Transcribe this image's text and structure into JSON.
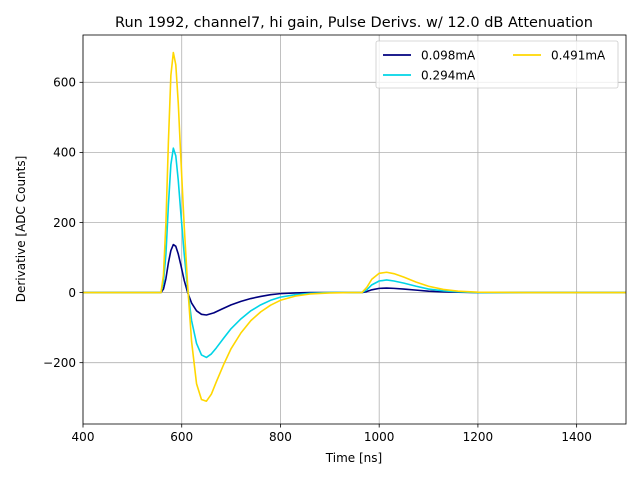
{
  "chart_data": {
    "type": "line",
    "title": "Run 1992, channel7, hi gain, Pulse Derivs. w/ 12.0 dB Attenuation",
    "xlabel": "Time [ns]",
    "ylabel": "Derivative [ADC Counts]",
    "xlim": [
      400,
      1500
    ],
    "ylim": [
      -375,
      735
    ],
    "xticks": [
      400,
      600,
      800,
      1000,
      1200,
      1400
    ],
    "yticks": [
      -200,
      0,
      200,
      400,
      600
    ],
    "ytick_labels": [
      "−200",
      "0",
      "200",
      "400",
      "600"
    ],
    "grid": true,
    "legend_position": "top-right",
    "series": [
      {
        "name": "0.098mA",
        "color": "#00007f",
        "x": [
          400,
          550,
          558,
          563,
          568,
          573,
          578,
          583,
          588,
          593,
          598,
          605,
          612,
          620,
          630,
          640,
          650,
          665,
          680,
          700,
          720,
          740,
          760,
          780,
          800,
          830,
          860,
          900,
          940,
          965,
          975,
          985,
          1000,
          1015,
          1030,
          1050,
          1075,
          1100,
          1130,
          1160,
          1200,
          1300,
          1400,
          1500
        ],
        "y": [
          0,
          0,
          0,
          10,
          40,
          85,
          120,
          137,
          132,
          110,
          80,
          35,
          0,
          -30,
          -52,
          -62,
          -64,
          -58,
          -48,
          -35,
          -25,
          -17,
          -11,
          -6,
          -3,
          -1,
          0,
          0,
          0,
          0,
          3,
          8,
          12,
          13,
          12,
          10,
          7,
          4,
          2,
          1,
          0,
          0,
          0,
          0
        ]
      },
      {
        "name": "0.294mA",
        "color": "#00d4e6",
        "x": [
          400,
          550,
          558,
          563,
          568,
          573,
          578,
          583,
          588,
          593,
          598,
          605,
          612,
          620,
          630,
          640,
          650,
          660,
          670,
          685,
          700,
          720,
          740,
          760,
          780,
          800,
          830,
          860,
          900,
          940,
          965,
          975,
          985,
          1000,
          1015,
          1030,
          1050,
          1075,
          1100,
          1130,
          1160,
          1200,
          1300,
          1400,
          1500
        ],
        "y": [
          0,
          0,
          0,
          30,
          110,
          250,
          365,
          412,
          390,
          320,
          230,
          110,
          10,
          -80,
          -145,
          -178,
          -185,
          -175,
          -158,
          -130,
          -103,
          -75,
          -52,
          -35,
          -22,
          -13,
          -6,
          -2,
          0,
          0,
          0,
          8,
          22,
          33,
          36,
          33,
          27,
          18,
          10,
          5,
          2,
          0,
          0,
          0,
          0
        ]
      },
      {
        "name": "0.491mA",
        "color": "#ffd700",
        "x": [
          400,
          550,
          558,
          563,
          568,
          573,
          578,
          583,
          588,
          593,
          598,
          605,
          612,
          620,
          630,
          640,
          650,
          660,
          670,
          685,
          700,
          720,
          740,
          760,
          780,
          800,
          830,
          860,
          900,
          940,
          965,
          975,
          985,
          1000,
          1015,
          1030,
          1050,
          1075,
          1100,
          1130,
          1160,
          1200,
          1300,
          1400,
          1500
        ],
        "y": [
          0,
          0,
          0,
          50,
          200,
          430,
          620,
          685,
          650,
          540,
          390,
          190,
          20,
          -140,
          -260,
          -305,
          -310,
          -290,
          -255,
          -205,
          -160,
          -115,
          -80,
          -55,
          -36,
          -22,
          -10,
          -4,
          -1,
          0,
          0,
          15,
          38,
          55,
          58,
          54,
          44,
          30,
          18,
          9,
          4,
          1,
          0,
          0,
          0
        ]
      }
    ]
  }
}
